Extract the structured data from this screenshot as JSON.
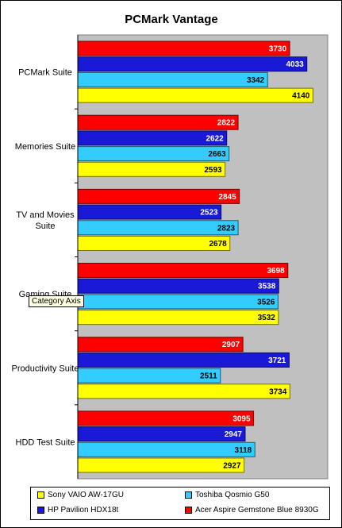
{
  "chart_data": {
    "type": "bar",
    "orientation": "horizontal",
    "title": "PCMark Vantage",
    "categories": [
      "PCMark Suite",
      "Memories Suite",
      "TV and Movies Suite",
      "Gaming Suite",
      "Productivity Suite",
      "HDD Test Suite"
    ],
    "category_display": [
      [
        "PCMark Suite"
      ],
      [
        "Memories Suite"
      ],
      [
        "TV and Movies",
        "Suite"
      ],
      [
        "Gaming Suite"
      ],
      [
        "Productivity Suite"
      ],
      [
        "HDD Test Suite"
      ]
    ],
    "series": [
      {
        "name": "Acer Aspire Gemstone Blue 8930G",
        "color": "#ff0000",
        "label_color": "#ffffff",
        "values": [
          3730,
          2822,
          2845,
          3698,
          2907,
          3095
        ]
      },
      {
        "name": "HP Pavilion HDX18t",
        "color": "#1a1ad6",
        "label_color": "#ffffff",
        "values": [
          4033,
          2622,
          2523,
          3538,
          3721,
          2947
        ]
      },
      {
        "name": "Toshiba Qosmio G50",
        "color": "#33ccff",
        "label_color": "#000000",
        "values": [
          3342,
          2663,
          2823,
          3526,
          2511,
          3118
        ]
      },
      {
        "name": "Sony VAIO AW-17GU",
        "color": "#ffff00",
        "label_color": "#000000",
        "values": [
          4140,
          2593,
          2678,
          3532,
          3734,
          2927
        ]
      }
    ],
    "xlim": [
      0,
      4400
    ],
    "grid": false,
    "legend_position": "bottom",
    "plot_background": "#c0c0c0"
  },
  "legend": {
    "sony": "Sony VAIO AW-17GU",
    "toshiba": "Toshiba Qosmio G50",
    "hp": "HP Pavilion HDX18t",
    "acer": "Acer Aspire Gemstone Blue 8930G"
  },
  "tooltip": {
    "text": "Category Axis"
  }
}
